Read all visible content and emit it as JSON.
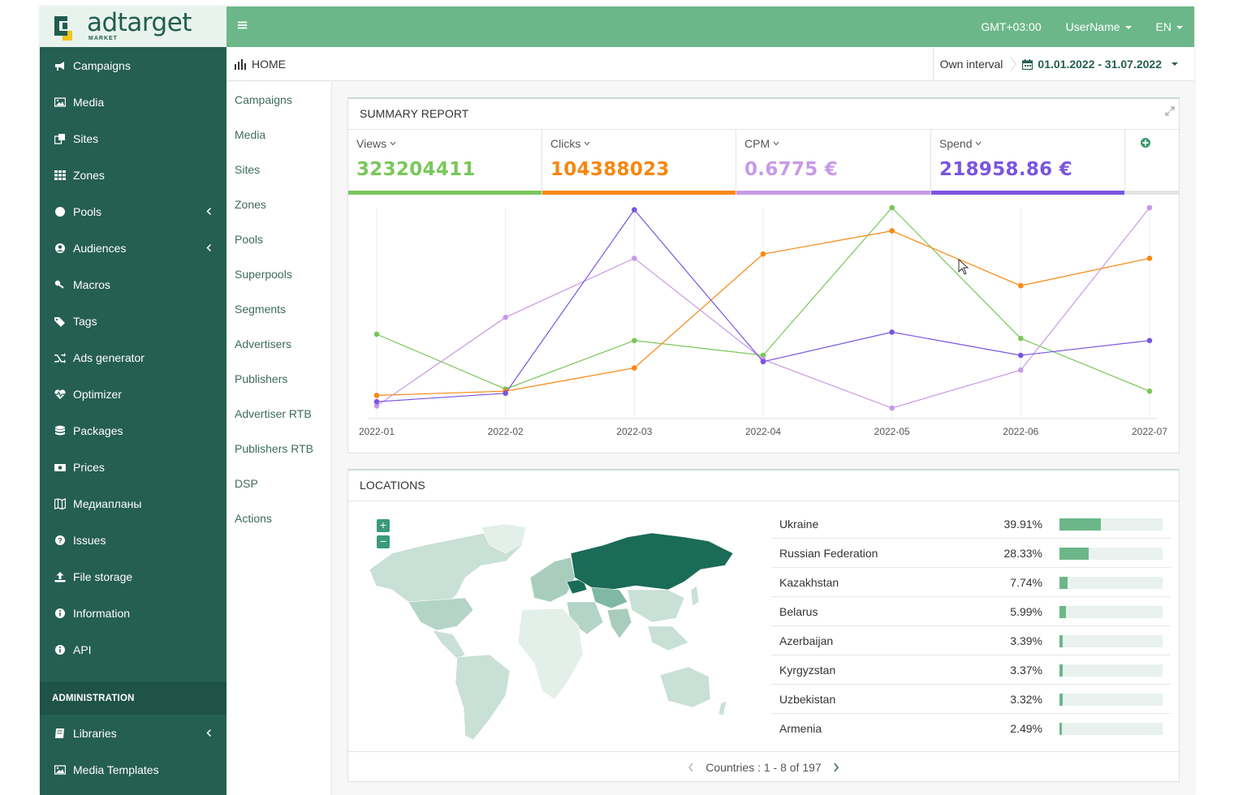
{
  "app": {
    "logo_name": "adtarget",
    "logo_sub": "MARKET"
  },
  "topbar": {
    "timezone": "GMT+03:00",
    "user": "UserName",
    "language": "EN"
  },
  "sidebar": {
    "items": [
      {
        "label": "Campaigns",
        "icon": "bullhorn-icon"
      },
      {
        "label": "Media",
        "icon": "image-icon"
      },
      {
        "label": "Sites",
        "icon": "clone-icon"
      },
      {
        "label": "Zones",
        "icon": "grid-icon"
      },
      {
        "label": "Pools",
        "icon": "circle-icon",
        "expandable": true
      },
      {
        "label": "Audiences",
        "icon": "user-circle-icon",
        "expandable": true
      },
      {
        "label": "Macros",
        "icon": "key-icon"
      },
      {
        "label": "Tags",
        "icon": "tags-icon"
      },
      {
        "label": "Ads generator",
        "icon": "shuffle-icon"
      },
      {
        "label": "Optimizer",
        "icon": "heartbeat-icon"
      },
      {
        "label": "Packages",
        "icon": "database-icon"
      },
      {
        "label": "Prices",
        "icon": "money-icon"
      },
      {
        "label": "Медиапланы",
        "icon": "map-icon"
      },
      {
        "label": "Issues",
        "icon": "question-icon"
      },
      {
        "label": "File storage",
        "icon": "upload-icon"
      },
      {
        "label": "Information",
        "icon": "info-icon"
      },
      {
        "label": "API",
        "icon": "info-icon"
      }
    ],
    "admin_header": "ADMINISTRATION",
    "admin_items": [
      {
        "label": "Libraries",
        "icon": "book-icon",
        "expandable": true
      },
      {
        "label": "Media Templates",
        "icon": "image-icon"
      }
    ]
  },
  "breadcrumb": {
    "title": "HOME",
    "interval_label": "Own interval",
    "interval_value": "01.01.2022 - 31.07.2022"
  },
  "subnav": {
    "items": [
      "Campaigns",
      "Media",
      "Sites",
      "Zones",
      "Pools",
      "Superpools",
      "Segments",
      "Advertisers",
      "Publishers",
      "Advertiser RTB",
      "Publishers RTB",
      "DSP",
      "Actions"
    ]
  },
  "summary": {
    "title": "SUMMARY REPORT",
    "metrics": [
      {
        "label": "Views",
        "value": "323204411",
        "color": "#7ac75a"
      },
      {
        "label": "Clicks",
        "value": "104388023",
        "color": "#f7870f"
      },
      {
        "label": "CPM",
        "value": "0.6775 €",
        "color": "#c79ae6"
      },
      {
        "label": "Spend",
        "value": "218958.86 €",
        "color": "#7a55e0"
      }
    ]
  },
  "chart_data": {
    "type": "line",
    "x": [
      "2022-01",
      "2022-02",
      "2022-03",
      "2022-04",
      "2022-05",
      "2022-06",
      "2022-07"
    ],
    "normalized_scale": true,
    "ylim": [
      0,
      1
    ],
    "grid": "vertical",
    "series": [
      {
        "name": "Views",
        "color": "#7ac75a",
        "values": [
          0.4,
          0.14,
          0.37,
          0.3,
          1.0,
          0.38,
          0.13
        ]
      },
      {
        "name": "Clicks",
        "color": "#f7870f",
        "values": [
          0.11,
          0.13,
          0.24,
          0.78,
          0.89,
          0.63,
          0.76
        ]
      },
      {
        "name": "CPM",
        "color": "#c79ae6",
        "values": [
          0.06,
          0.48,
          0.76,
          0.28,
          0.05,
          0.23,
          1.0
        ]
      },
      {
        "name": "Spend",
        "color": "#7a55e0",
        "values": [
          0.08,
          0.12,
          0.99,
          0.27,
          0.41,
          0.3,
          0.37
        ]
      }
    ]
  },
  "locations": {
    "title": "LOCATIONS",
    "rows": [
      {
        "country": "Ukraine",
        "percent": "39.91%",
        "fraction": 0.3991
      },
      {
        "country": "Russian Federation",
        "percent": "28.33%",
        "fraction": 0.2833
      },
      {
        "country": "Kazakhstan",
        "percent": "7.74%",
        "fraction": 0.0774
      },
      {
        "country": "Belarus",
        "percent": "5.99%",
        "fraction": 0.0599
      },
      {
        "country": "Azerbaijan",
        "percent": "3.39%",
        "fraction": 0.0339
      },
      {
        "country": "Kyrgyzstan",
        "percent": "3.37%",
        "fraction": 0.0337
      },
      {
        "country": "Uzbekistan",
        "percent": "3.32%",
        "fraction": 0.0332
      },
      {
        "country": "Armenia",
        "percent": "2.49%",
        "fraction": 0.0249
      }
    ],
    "pager_text": "Countries : 1 - 8 of 197",
    "map_colors": {
      "dark": "#1a6b57",
      "mid": "#7fb8a4",
      "light": "#c9e0d6",
      "lightest": "#e3efe9"
    }
  }
}
